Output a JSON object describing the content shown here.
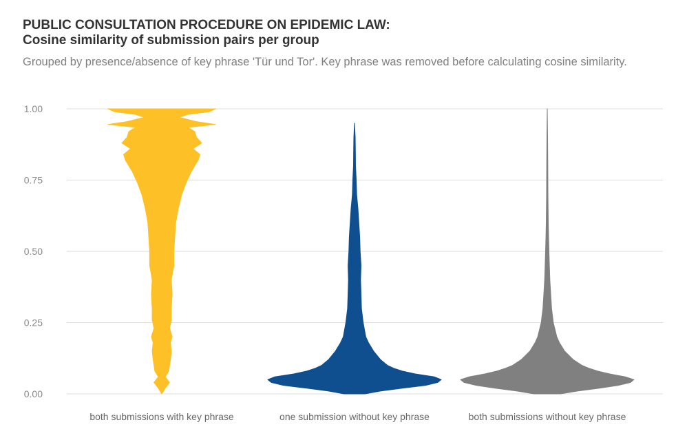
{
  "chart_data": {
    "type": "violin",
    "title_line1": "PUBLIC CONSULTATION PROCEDURE ON EPIDEMIC LAW:",
    "title_line2": "Cosine similarity of submission pairs per group",
    "subtitle": "Grouped by presence/absence of key phrase 'Tür und Tor'. Key phrase was removed before calculating cosine similarity.",
    "ylim": [
      0,
      1
    ],
    "y_ticks": [
      {
        "value": 0.0,
        "label": "0.00"
      },
      {
        "value": 0.25,
        "label": "0.25"
      },
      {
        "value": 0.5,
        "label": "0.50"
      },
      {
        "value": 0.75,
        "label": "0.75"
      },
      {
        "value": 1.0,
        "label": "1.00"
      }
    ],
    "grid": true,
    "categories": [
      "both submissions with key phrase",
      "one submission without key phrase",
      "both submissions without key phrase"
    ],
    "series": [
      {
        "color": "#FDC127",
        "density": [
          [
            0.0,
            0.0
          ],
          [
            0.02,
            0.04
          ],
          [
            0.04,
            0.09
          ],
          [
            0.06,
            0.04
          ],
          [
            0.08,
            0.08
          ],
          [
            0.1,
            0.09
          ],
          [
            0.12,
            0.1
          ],
          [
            0.15,
            0.11
          ],
          [
            0.18,
            0.1
          ],
          [
            0.2,
            0.12
          ],
          [
            0.23,
            0.09
          ],
          [
            0.26,
            0.11
          ],
          [
            0.3,
            0.11
          ],
          [
            0.35,
            0.12
          ],
          [
            0.4,
            0.11
          ],
          [
            0.45,
            0.14
          ],
          [
            0.5,
            0.14
          ],
          [
            0.55,
            0.15
          ],
          [
            0.6,
            0.16
          ],
          [
            0.65,
            0.19
          ],
          [
            0.7,
            0.23
          ],
          [
            0.74,
            0.28
          ],
          [
            0.78,
            0.34
          ],
          [
            0.8,
            0.38
          ],
          [
            0.82,
            0.42
          ],
          [
            0.84,
            0.44
          ],
          [
            0.86,
            0.36
          ],
          [
            0.88,
            0.46
          ],
          [
            0.9,
            0.4
          ],
          [
            0.92,
            0.38
          ],
          [
            0.935,
            0.3
          ],
          [
            0.945,
            0.62
          ],
          [
            0.955,
            0.4
          ],
          [
            0.97,
            0.2
          ],
          [
            0.98,
            0.3
          ],
          [
            0.99,
            0.55
          ],
          [
            1.0,
            0.62
          ]
        ]
      },
      {
        "color": "#0F4F8F",
        "density": [
          [
            0.0,
            0.12
          ],
          [
            0.01,
            0.3
          ],
          [
            0.02,
            0.55
          ],
          [
            0.03,
            0.82
          ],
          [
            0.04,
            0.96
          ],
          [
            0.05,
            1.0
          ],
          [
            0.06,
            0.92
          ],
          [
            0.07,
            0.7
          ],
          [
            0.08,
            0.55
          ],
          [
            0.09,
            0.45
          ],
          [
            0.1,
            0.38
          ],
          [
            0.12,
            0.3
          ],
          [
            0.15,
            0.22
          ],
          [
            0.18,
            0.16
          ],
          [
            0.2,
            0.13
          ],
          [
            0.25,
            0.1
          ],
          [
            0.3,
            0.08
          ],
          [
            0.35,
            0.075
          ],
          [
            0.4,
            0.07
          ],
          [
            0.45,
            0.075
          ],
          [
            0.5,
            0.065
          ],
          [
            0.55,
            0.06
          ],
          [
            0.6,
            0.05
          ],
          [
            0.65,
            0.04
          ],
          [
            0.7,
            0.025
          ],
          [
            0.75,
            0.02
          ],
          [
            0.8,
            0.012
          ],
          [
            0.85,
            0.01
          ],
          [
            0.9,
            0.008
          ],
          [
            0.95,
            0.0
          ]
        ]
      },
      {
        "color": "#808080",
        "density": [
          [
            0.0,
            0.15
          ],
          [
            0.01,
            0.35
          ],
          [
            0.02,
            0.6
          ],
          [
            0.03,
            0.82
          ],
          [
            0.04,
            0.96
          ],
          [
            0.05,
            1.0
          ],
          [
            0.06,
            0.9
          ],
          [
            0.07,
            0.72
          ],
          [
            0.08,
            0.58
          ],
          [
            0.09,
            0.48
          ],
          [
            0.1,
            0.4
          ],
          [
            0.12,
            0.3
          ],
          [
            0.15,
            0.2
          ],
          [
            0.18,
            0.14
          ],
          [
            0.2,
            0.11
          ],
          [
            0.25,
            0.07
          ],
          [
            0.3,
            0.05
          ],
          [
            0.35,
            0.04
          ],
          [
            0.4,
            0.03
          ],
          [
            0.45,
            0.025
          ],
          [
            0.5,
            0.02
          ],
          [
            0.55,
            0.015
          ],
          [
            0.6,
            0.012
          ],
          [
            0.7,
            0.008
          ],
          [
            0.8,
            0.006
          ],
          [
            0.9,
            0.004
          ],
          [
            1.0,
            0.0
          ]
        ]
      }
    ]
  }
}
